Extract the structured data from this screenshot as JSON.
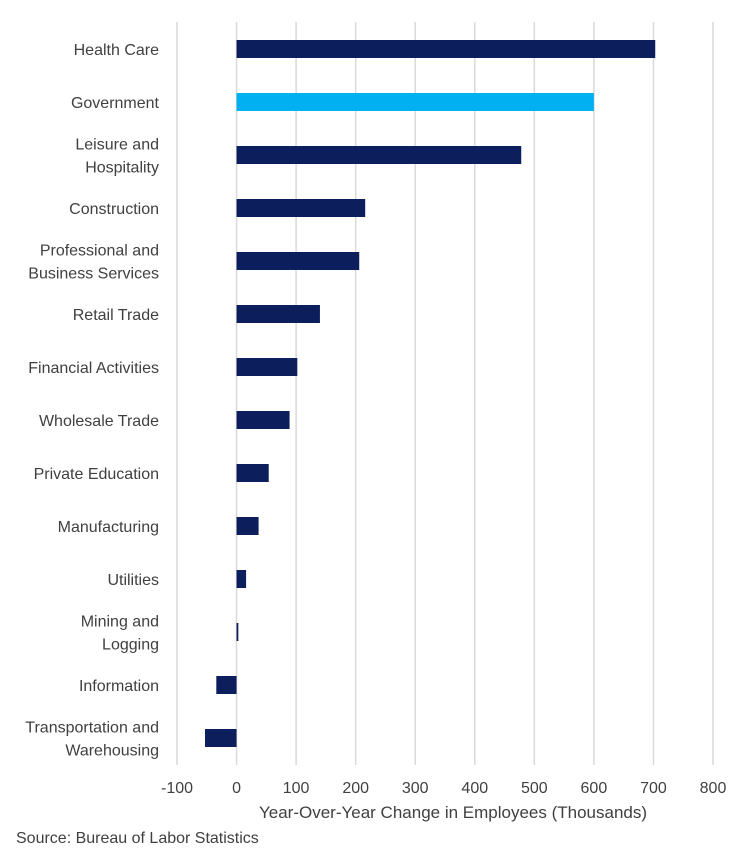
{
  "chart_data": {
    "type": "bar",
    "orientation": "horizontal",
    "categories": [
      [
        "Health Care"
      ],
      [
        "Government"
      ],
      [
        "Leisure and",
        "Hospitality"
      ],
      [
        "Construction"
      ],
      [
        "Professional and",
        "Business Services"
      ],
      [
        "Retail Trade"
      ],
      [
        "Financial Activities"
      ],
      [
        "Wholesale Trade"
      ],
      [
        "Private Education"
      ],
      [
        "Manufacturing"
      ],
      [
        "Utilities"
      ],
      [
        "Mining and",
        "Logging"
      ],
      [
        "Information"
      ],
      [
        "Transportation and",
        "Warehousing"
      ]
    ],
    "values": [
      703,
      600,
      478,
      216,
      206,
      140,
      102,
      89,
      54,
      37,
      16,
      3,
      -34,
      -53
    ],
    "highlight_index": 1,
    "colors": {
      "default": "#0c1e5b",
      "highlight": "#00b0f0",
      "grid": "#d9d9d9"
    },
    "xlim": [
      -100,
      800
    ],
    "xticks": [
      -100,
      0,
      100,
      200,
      300,
      400,
      500,
      600,
      700,
      800
    ],
    "xlabel": "Year-Over-Year  Change in Employees (Thousands)",
    "ylabel": "",
    "title": "",
    "grid": true,
    "legend": false
  },
  "source": "Source: Bureau of Labor Statistics"
}
